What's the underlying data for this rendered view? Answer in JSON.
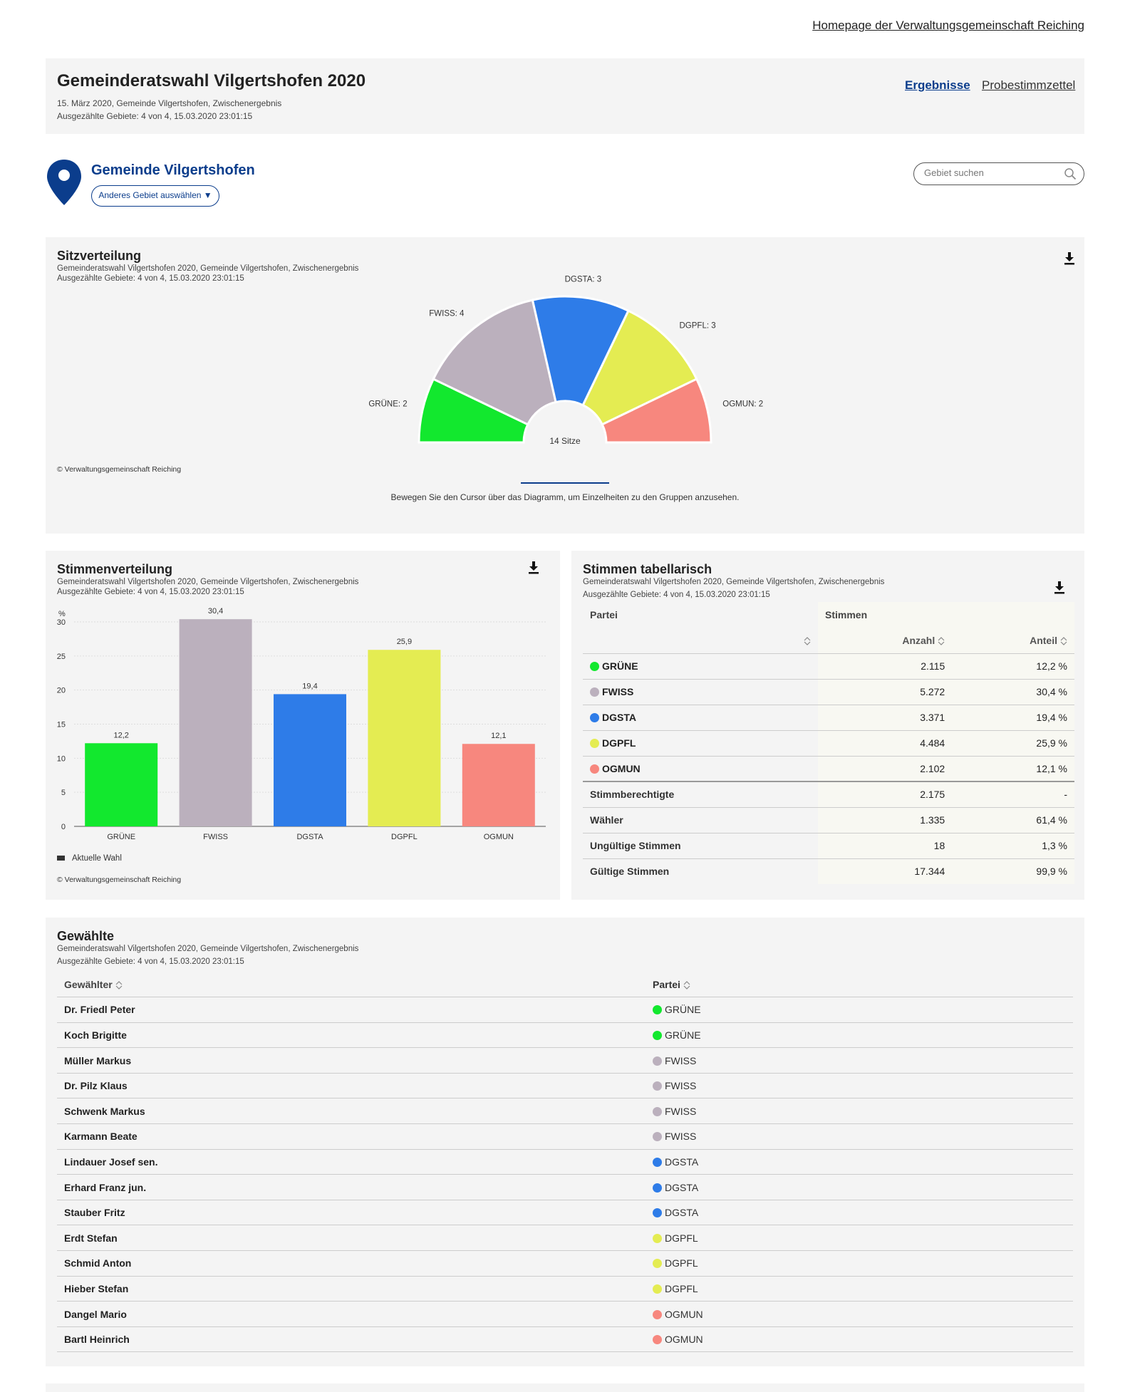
{
  "top_link": "Homepage der Verwaltungsgemeinschaft Reiching",
  "header": {
    "title": "Gemeinderatswahl Vilgertshofen 2020",
    "sub1": "15. März 2020, Gemeinde Vilgertshofen, Zwischenergebnis",
    "sub2": "Ausgezählte Gebiete: 4 von 4, 15.03.2020 23:01:15",
    "nav": [
      "Ergebnisse",
      "Probestimmzettel"
    ]
  },
  "region": {
    "name": "Gemeinde Vilgertshofen",
    "change_label": "Anderes Gebiet auswählen ▼",
    "search_placeholder": "Gebiet suchen"
  },
  "colors": {
    "GRÜNE": "#12e82e",
    "FWISS": "#bbb0bd",
    "DGSTA": "#2e7ce8",
    "DGPFL": "#e4ec52",
    "OGMUN": "#f7877e",
    "accent": "#0b3d8c"
  },
  "sitz": {
    "title": "Sitzverteilung",
    "sub1": "Gemeinderatswahl Vilgertshofen 2020, Gemeinde Vilgertshofen, Zwischenergebnis",
    "sub2": "Ausgezählte Gebiete: 4 von 4, 15.03.2020 23:01:15",
    "center_label": "14 Sitze",
    "copyright": "© Verwaltungsgemeinschaft Reiching",
    "hint": "Bewegen Sie den Cursor über das Diagramm, um Einzelheiten zu den Gruppen anzusehen."
  },
  "stimm": {
    "title": "Stimmenverteilung",
    "sub1": "Gemeinderatswahl Vilgertshofen 2020, Gemeinde Vilgertshofen, Zwischenergebnis",
    "sub2": "Ausgezählte Gebiete: 4 von 4, 15.03.2020 23:01:15",
    "legend": "Aktuelle Wahl",
    "copyright": "© Verwaltungsgemeinschaft Reiching"
  },
  "chart_data": [
    {
      "type": "pie",
      "variant": "semicircle",
      "categories": [
        "GRÜNE",
        "FWISS",
        "DGSTA",
        "DGPFL",
        "OGMUN"
      ],
      "values": [
        2,
        4,
        3,
        3,
        2
      ],
      "labels": [
        "GRÜNE: 2",
        "FWISS: 4",
        "DGSTA: 3",
        "DGPFL: 3",
        "OGMUN: 2"
      ],
      "total_label": "14 Sitze",
      "title": "Sitzverteilung"
    },
    {
      "type": "bar",
      "categories": [
        "GRÜNE",
        "FWISS",
        "DGSTA",
        "DGPFL",
        "OGMUN"
      ],
      "values": [
        12.2,
        30.4,
        19.4,
        25.9,
        12.1
      ],
      "data_labels": [
        "12,2",
        "30,4",
        "19,4",
        "25,9",
        "12,1"
      ],
      "ylabel": "%",
      "ylim": [
        0,
        30
      ],
      "yticks": [
        0,
        5,
        10,
        15,
        20,
        25,
        30
      ],
      "grid": true,
      "title": "Stimmenverteilung"
    }
  ],
  "tab": {
    "title": "Stimmen tabellarisch",
    "sub1": "Gemeinderatswahl Vilgertshofen 2020, Gemeinde Vilgertshofen, Zwischenergebnis",
    "sub2": "Ausgezählte Gebiete: 4 von 4, 15.03.2020 23:01:15",
    "head_partei": "Partei",
    "head_stimmen": "Stimmen",
    "head_anzahl": "Anzahl",
    "head_anteil": "Anteil",
    "parties": [
      {
        "name": "GRÜNE",
        "anzahl": "2.115",
        "anteil": "12,2 %"
      },
      {
        "name": "FWISS",
        "anzahl": "5.272",
        "anteil": "30,4 %"
      },
      {
        "name": "DGSTA",
        "anzahl": "3.371",
        "anteil": "19,4 %"
      },
      {
        "name": "DGPFL",
        "anzahl": "4.484",
        "anteil": "25,9 %"
      },
      {
        "name": "OGMUN",
        "anzahl": "2.102",
        "anteil": "12,1 %"
      }
    ],
    "summary": [
      {
        "name": "Stimmberechtigte",
        "anzahl": "2.175",
        "anteil": "-"
      },
      {
        "name": "Wähler",
        "anzahl": "1.335",
        "anteil": "61,4 %"
      },
      {
        "name": "Ungültige Stimmen",
        "anzahl": "18",
        "anteil": "1,3 %"
      },
      {
        "name": "Gültige Stimmen",
        "anzahl": "17.344",
        "anteil": "99,9 %"
      }
    ]
  },
  "gew": {
    "title": "Gewählte",
    "sub1": "Gemeinderatswahl Vilgertshofen 2020, Gemeinde Vilgertshofen, Zwischenergebnis",
    "sub2": "Ausgezählte Gebiete: 4 von 4, 15.03.2020 23:01:15",
    "head_name": "Gewählter",
    "head_partei": "Partei",
    "rows": [
      {
        "name": "Dr. Friedl Peter",
        "partei": "GRÜNE"
      },
      {
        "name": "Koch Brigitte",
        "partei": "GRÜNE"
      },
      {
        "name": "Müller Markus",
        "partei": "FWISS"
      },
      {
        "name": "Dr. Pilz Klaus",
        "partei": "FWISS"
      },
      {
        "name": "Schwenk Markus",
        "partei": "FWISS"
      },
      {
        "name": "Karmann Beate",
        "partei": "FWISS"
      },
      {
        "name": "Lindauer Josef sen.",
        "partei": "DGSTA"
      },
      {
        "name": "Erhard Franz jun.",
        "partei": "DGSTA"
      },
      {
        "name": "Stauber Fritz",
        "partei": "DGSTA"
      },
      {
        "name": "Erdt Stefan",
        "partei": "DGPFL"
      },
      {
        "name": "Schmid Anton",
        "partei": "DGPFL"
      },
      {
        "name": "Hieber Stefan",
        "partei": "DGPFL"
      },
      {
        "name": "Dangel Mario",
        "partei": "OGMUN"
      },
      {
        "name": "Bartl Heinrich",
        "partei": "OGMUN"
      }
    ]
  }
}
